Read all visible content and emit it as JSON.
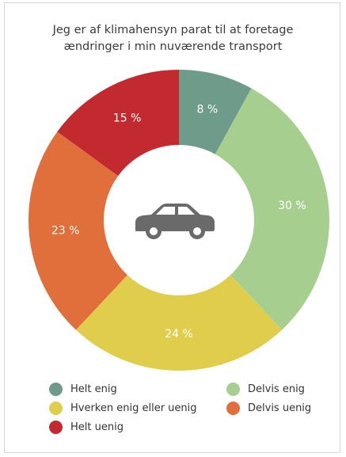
{
  "colors": {
    "helt_enig": "#6f9b8a",
    "delvis_enig": "#a6cf8f",
    "hverken": "#e1cd4c",
    "delvis_uenig": "#e06f3c",
    "helt_uenig": "#c22a2f",
    "label_text": "#ffffff",
    "car": "#6a6a6a"
  },
  "chart_data": {
    "type": "pie",
    "title": "Jeg er af klimahensyn parat til at foretage ændringer i min nuværende transport",
    "title_lines": [
      "Jeg er af klimahensyn parat til at foretage",
      "ændringer i min nuværende transport"
    ],
    "center_icon": "car-icon",
    "unit": "%",
    "legend_placement": "bottom",
    "slices": [
      {
        "key": "helt_enig",
        "label": "Helt enig",
        "value": 8,
        "value_label": "8 %"
      },
      {
        "key": "delvis_enig",
        "label": "Delvis enig",
        "value": 30,
        "value_label": "30 %"
      },
      {
        "key": "hverken",
        "label": "Hverken enig eller uenig",
        "value": 24,
        "value_label": "24 %"
      },
      {
        "key": "delvis_uenig",
        "label": "Delvis uenig",
        "value": 23,
        "value_label": "23 %"
      },
      {
        "key": "helt_uenig",
        "label": "Helt uenig",
        "value": 15,
        "value_label": "15 %"
      }
    ]
  }
}
